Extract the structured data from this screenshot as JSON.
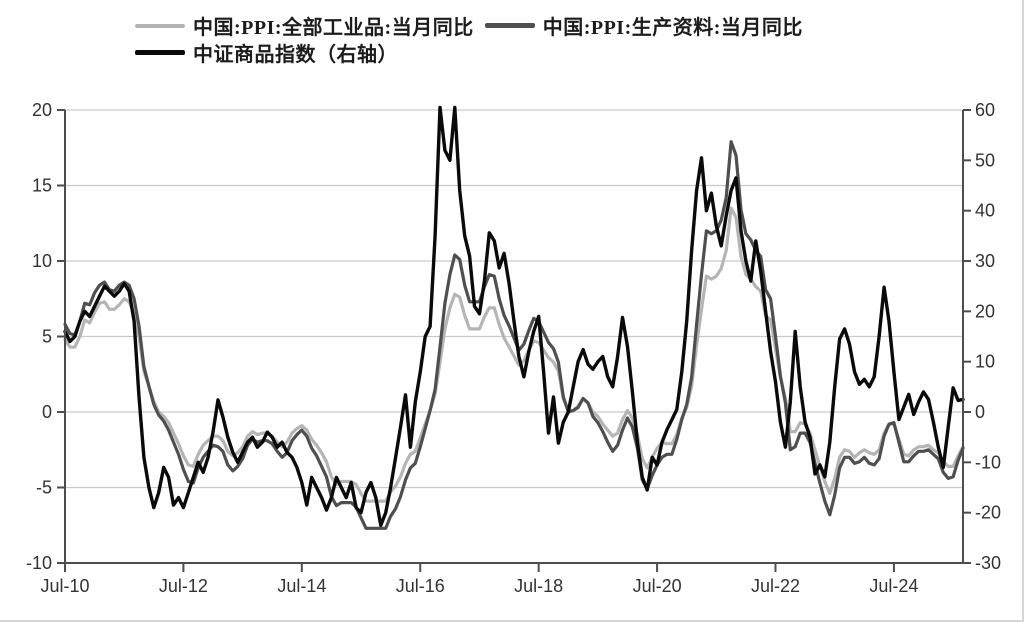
{
  "legend": {
    "items": [
      {
        "label": "中国:PPI:全部工业品:当月同比",
        "color": "#b5b5b5"
      },
      {
        "label": "中国:PPI:生产资料:当月同比",
        "color": "#4f4f4f"
      },
      {
        "label": "中证商品指数（右轴）",
        "color": "#0a0a0a"
      }
    ]
  },
  "chart_data": {
    "type": "line",
    "title": "",
    "x_start": "2010-07",
    "x_step_months": 1,
    "x_tick_labels": [
      {
        "label": "Jul-10",
        "index": 0
      },
      {
        "label": "Jul-12",
        "index": 24
      },
      {
        "label": "Jul-14",
        "index": 48
      },
      {
        "label": "Jul-16",
        "index": 72
      },
      {
        "label": "Jul-18",
        "index": 96
      },
      {
        "label": "Jul-20",
        "index": 120
      },
      {
        "label": "Jul-22",
        "index": 144
      },
      {
        "label": "Jul-24",
        "index": 168
      }
    ],
    "left_axis": {
      "range": [
        -10,
        20
      ],
      "ticks": [
        20,
        15,
        10,
        5,
        0,
        -5,
        -10
      ]
    },
    "right_axis": {
      "range": [
        -30,
        60
      ],
      "ticks": [
        60,
        50,
        40,
        30,
        20,
        10,
        0,
        -10,
        -20,
        -30
      ]
    },
    "grid": "horizontal-left-ticks",
    "legend_position": "top-left",
    "colors": {
      "grid": "#c9c9c9",
      "axis": "#4d4d4d",
      "tick_label": "#333333",
      "background": "#ffffff"
    },
    "series": [
      {
        "name": "中国:PPI:全部工业品:当月同比",
        "axis": "left",
        "color": "#b5b5b5",
        "width": 3.2,
        "values": [
          4.8,
          4.3,
          4.3,
          5.0,
          6.1,
          5.9,
          6.6,
          7.2,
          7.3,
          6.8,
          6.8,
          7.1,
          7.5,
          7.3,
          6.5,
          5.0,
          2.7,
          1.7,
          0.7,
          0.0,
          -0.3,
          -0.7,
          -1.4,
          -2.1,
          -2.9,
          -3.5,
          -3.6,
          -2.8,
          -2.2,
          -1.9,
          -1.6,
          -1.6,
          -1.9,
          -2.6,
          -2.9,
          -2.7,
          -2.3,
          -1.6,
          -1.3,
          -1.5,
          -1.4,
          -1.4,
          -1.6,
          -2.0,
          -2.3,
          -2.0,
          -1.4,
          -1.1,
          -0.9,
          -1.2,
          -1.8,
          -2.2,
          -2.7,
          -3.3,
          -4.3,
          -4.8,
          -4.6,
          -4.6,
          -4.6,
          -4.8,
          -5.4,
          -5.9,
          -5.9,
          -5.9,
          -5.9,
          -5.9,
          -5.3,
          -4.9,
          -4.3,
          -3.4,
          -2.8,
          -2.6,
          -1.7,
          -0.8,
          0.1,
          1.2,
          3.3,
          5.5,
          6.9,
          7.8,
          7.6,
          6.4,
          5.5,
          5.5,
          5.5,
          6.3,
          6.9,
          6.9,
          5.8,
          4.9,
          4.3,
          3.7,
          3.1,
          3.4,
          4.1,
          4.7,
          4.6,
          4.1,
          3.6,
          3.3,
          2.7,
          0.9,
          0.1,
          0.1,
          0.4,
          0.9,
          0.6,
          0.0,
          -0.3,
          -0.8,
          -1.2,
          -1.6,
          -1.4,
          -0.5,
          0.1,
          -0.4,
          -1.5,
          -3.1,
          -3.7,
          -3.0,
          -2.4,
          -2.0,
          -2.1,
          -2.1,
          -1.5,
          -0.4,
          0.3,
          1.7,
          4.4,
          6.8,
          9.0,
          8.8,
          9.0,
          9.5,
          10.7,
          13.5,
          12.9,
          10.3,
          9.1,
          8.8,
          8.3,
          8.0,
          6.4,
          6.1,
          4.2,
          2.3,
          0.9,
          -1.3,
          -1.3,
          -0.7,
          -0.8,
          -1.4,
          -2.5,
          -3.6,
          -4.6,
          -5.4,
          -4.4,
          -3.0,
          -2.5,
          -2.6,
          -3.0,
          -2.7,
          -2.5,
          -2.7,
          -2.8,
          -2.5,
          -1.4,
          -0.8,
          -0.8,
          -1.8,
          -2.8,
          -2.9,
          -2.5,
          -2.3,
          -2.3,
          -2.2,
          -2.5,
          -2.7,
          -3.3,
          -3.6,
          -3.6,
          -2.9,
          -2.3
        ]
      },
      {
        "name": "中国:PPI:生产资料:当月同比",
        "axis": "left",
        "color": "#4f4f4f",
        "width": 3.2,
        "values": [
          5.8,
          5.2,
          5.1,
          6.0,
          7.2,
          7.1,
          7.9,
          8.4,
          8.6,
          8.1,
          8.0,
          8.4,
          8.6,
          8.4,
          7.5,
          5.7,
          3.0,
          1.7,
          0.5,
          -0.2,
          -0.6,
          -1.2,
          -2.0,
          -2.8,
          -3.8,
          -4.6,
          -4.7,
          -3.7,
          -3.0,
          -2.6,
          -2.2,
          -2.3,
          -2.6,
          -3.5,
          -3.9,
          -3.6,
          -3.1,
          -2.2,
          -1.8,
          -2.0,
          -1.9,
          -1.9,
          -2.1,
          -2.6,
          -3.0,
          -2.7,
          -1.9,
          -1.5,
          -1.2,
          -1.6,
          -2.4,
          -2.9,
          -3.6,
          -4.3,
          -5.6,
          -6.2,
          -6.0,
          -6.0,
          -6.0,
          -6.3,
          -7.0,
          -7.7,
          -7.7,
          -7.7,
          -7.7,
          -7.7,
          -6.9,
          -6.4,
          -5.6,
          -4.5,
          -3.7,
          -3.4,
          -2.3,
          -1.1,
          0.1,
          1.5,
          4.3,
          7.2,
          9.1,
          10.4,
          10.1,
          8.4,
          7.3,
          7.3,
          7.3,
          8.3,
          9.1,
          9.0,
          7.5,
          6.4,
          5.7,
          4.9,
          4.1,
          4.5,
          5.4,
          6.2,
          6.0,
          5.3,
          4.6,
          4.2,
          3.3,
          1.0,
          0.0,
          0.1,
          0.3,
          0.9,
          0.6,
          -0.3,
          -0.7,
          -1.3,
          -2.0,
          -2.6,
          -2.2,
          -1.2,
          -0.4,
          -1.0,
          -2.4,
          -4.5,
          -5.1,
          -4.2,
          -3.5,
          -3.0,
          -2.8,
          -2.8,
          -1.8,
          -0.5,
          0.5,
          2.3,
          5.8,
          9.1,
          12.0,
          11.8,
          12.0,
          12.7,
          14.2,
          17.9,
          17.0,
          13.4,
          11.8,
          11.4,
          10.7,
          10.3,
          8.1,
          7.5,
          5.0,
          2.4,
          0.6,
          -2.5,
          -2.3,
          -1.4,
          -1.4,
          -2.0,
          -3.4,
          -4.7,
          -5.9,
          -6.8,
          -5.5,
          -3.7,
          -3.0,
          -3.0,
          -3.4,
          -3.3,
          -3.0,
          -3.4,
          -3.5,
          -3.1,
          -1.6,
          -0.8,
          -0.7,
          -2.0,
          -3.3,
          -3.3,
          -2.9,
          -2.6,
          -2.6,
          -2.5,
          -2.8,
          -3.1,
          -4.0,
          -4.4,
          -4.3,
          -3.2,
          -2.4
        ]
      },
      {
        "name": "中证商品指数（右轴）",
        "axis": "right",
        "color": "#0a0a0a",
        "width": 3.4,
        "values": [
          16,
          14,
          15,
          18,
          20,
          19,
          21,
          23,
          25,
          24,
          23,
          24,
          25.5,
          24,
          18,
          3,
          -9,
          -15,
          -19,
          -16,
          -11,
          -13,
          -18.5,
          -17,
          -19,
          -16,
          -13,
          -10,
          -12,
          -9,
          -4,
          2.4,
          -1,
          -5,
          -8,
          -10,
          -8,
          -6,
          -5,
          -7,
          -6,
          -4,
          -5,
          -7,
          -6,
          -8,
          -9,
          -11,
          -14,
          -18.5,
          -13,
          -15,
          -17,
          -19.5,
          -17,
          -13,
          -15,
          -17,
          -14,
          -19,
          -20,
          -16,
          -14,
          -17,
          -22.5,
          -20,
          -15,
          -9,
          -3,
          3.4,
          -7,
          2,
          8,
          15,
          17,
          35,
          60.5,
          52,
          50,
          60.5,
          44,
          35,
          31,
          21,
          19.5,
          26,
          35.6,
          34,
          28.6,
          31.5,
          25.5,
          18,
          11,
          7,
          12,
          16,
          19,
          8,
          -4.2,
          3,
          -6.2,
          -2,
          0,
          5,
          10,
          12.4,
          9.5,
          8.5,
          10,
          11,
          7,
          5,
          11,
          18.8,
          13,
          4,
          -6,
          -13,
          -15.5,
          -9,
          -10.5,
          -6,
          -3.5,
          -1.5,
          0.5,
          8,
          18,
          32,
          44,
          50.5,
          40,
          43.5,
          37,
          33,
          39,
          44,
          46.5,
          36,
          30,
          26,
          34,
          28,
          20,
          12,
          6,
          -2,
          -7,
          2,
          16,
          5,
          -2,
          -5,
          -12.3,
          -10.5,
          -12.9,
          -6,
          5,
          14.5,
          16.5,
          13.5,
          8,
          5.5,
          6.5,
          5,
          7,
          15,
          24.8,
          18,
          8,
          -1.5,
          1,
          3.5,
          -0.5,
          2,
          4,
          2.5,
          -2,
          -7,
          -11,
          -3,
          4.8,
          2.3,
          2.5
        ]
      }
    ]
  }
}
